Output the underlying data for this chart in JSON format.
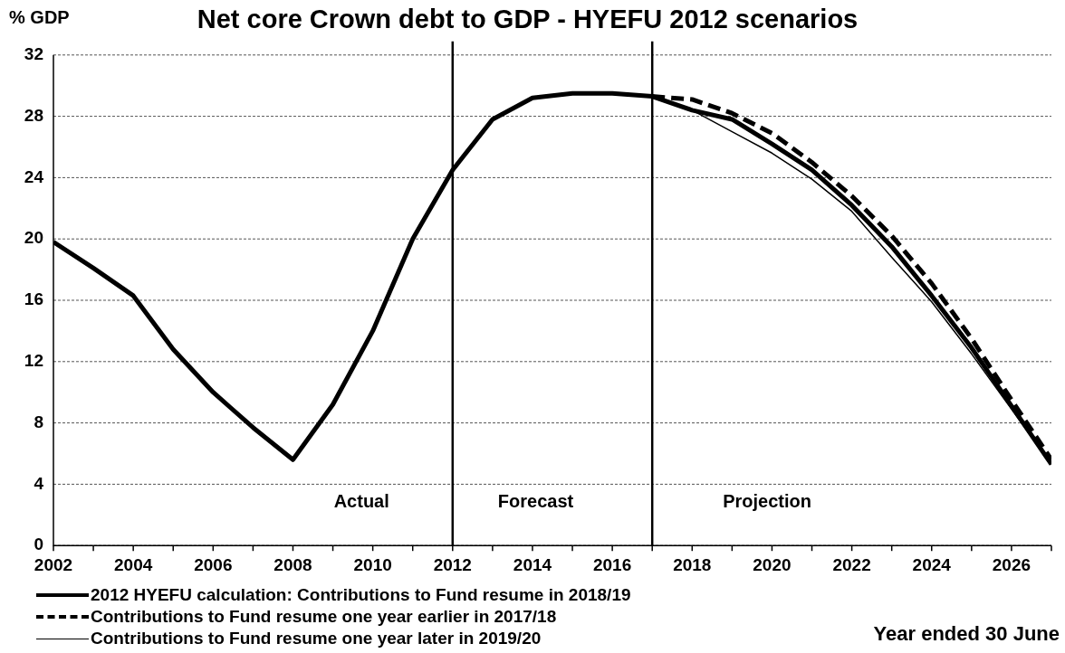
{
  "chart_data": {
    "type": "line",
    "title": "Net core Crown debt to GDP - HYEFU 2012 scenarios",
    "ylabel": "% GDP",
    "xlabel": "Year ended 30 June",
    "x": [
      2002,
      2003,
      2004,
      2005,
      2006,
      2007,
      2008,
      2009,
      2010,
      2011,
      2012,
      2013,
      2014,
      2015,
      2016,
      2017,
      2018,
      2019,
      2020,
      2021,
      2022,
      2023,
      2024,
      2025,
      2026,
      2027
    ],
    "series": [
      {
        "name": "2012 HYEFU calculation: Contributions to Fund resume in 2018/19",
        "color": "#000000",
        "line_style": "solid",
        "values": [
          19.8,
          18.1,
          16.3,
          12.8,
          10.0,
          7.7,
          5.6,
          9.2,
          14.0,
          20.0,
          24.5,
          27.8,
          29.2,
          29.5,
          29.5,
          29.3,
          28.4,
          27.8,
          26.2,
          24.5,
          22.2,
          19.5,
          16.3,
          12.9,
          9.1,
          5.3
        ]
      },
      {
        "name": "Contributions to Fund resume one year earlier in 2017/18",
        "color": "#000000",
        "line_style": "dashed",
        "values": [
          null,
          null,
          null,
          null,
          null,
          null,
          null,
          null,
          null,
          null,
          null,
          null,
          null,
          null,
          null,
          29.3,
          29.1,
          28.2,
          26.9,
          25.0,
          22.8,
          20.2,
          17.1,
          13.5,
          9.5,
          5.6
        ]
      },
      {
        "name": "Contributions to Fund resume one year later in 2019/20",
        "color": "#000000",
        "line_style": "solid",
        "values": [
          null,
          null,
          null,
          null,
          null,
          null,
          null,
          null,
          null,
          null,
          null,
          null,
          null,
          null,
          null,
          29.3,
          28.4,
          27.0,
          25.6,
          23.9,
          21.8,
          18.8,
          15.9,
          12.5,
          8.9,
          5.3
        ]
      }
    ],
    "xlim": [
      2002,
      2027
    ],
    "xticks": [
      2002,
      {
        "value": 2003,
        "label": null
      },
      2004,
      {
        "value": 2005,
        "label": null
      },
      2006,
      {
        "value": 2007,
        "label": null
      },
      2008,
      {
        "value": 2009,
        "label": null
      },
      2010,
      {
        "value": 2011,
        "label": null
      },
      2012,
      {
        "value": 2013,
        "label": null
      },
      2014,
      {
        "value": 2015,
        "label": null
      },
      2016,
      {
        "value": 2017,
        "label": null
      },
      2018,
      {
        "value": 2019,
        "label": null
      },
      2020,
      {
        "value": 2021,
        "label": null
      },
      2022,
      {
        "value": 2023,
        "label": null
      },
      2024,
      {
        "value": 2025,
        "label": null
      },
      2026,
      {
        "value": 2027,
        "label": null
      }
    ],
    "ylim": [
      0,
      32
    ],
    "yticks": [
      0,
      4,
      8,
      12,
      16,
      20,
      24,
      28,
      32
    ],
    "ref_lines": [
      {
        "axis": "x",
        "value": 2012,
        "color": "#000000"
      },
      {
        "axis": "x",
        "value": 2017,
        "color": "#000000"
      }
    ],
    "annotations": [
      "Actual",
      "Forecast",
      "Projection"
    ],
    "grid": "y",
    "legend": "bottom",
    "marker": "none"
  }
}
